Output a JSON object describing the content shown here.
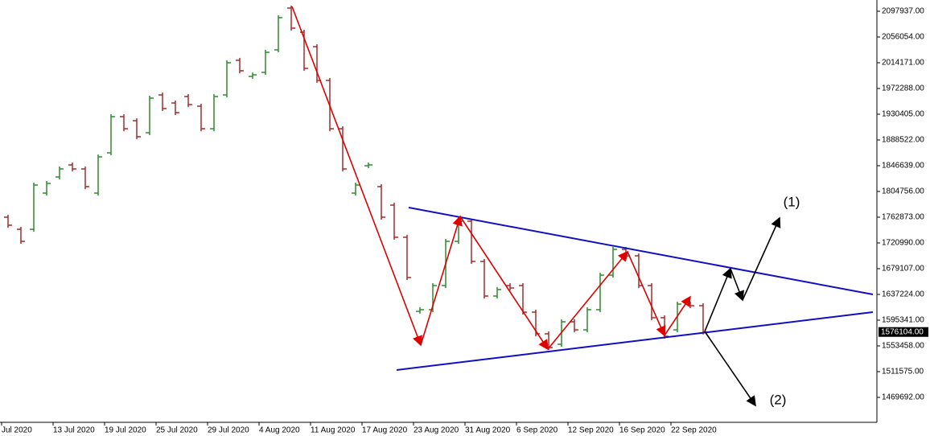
{
  "chart_data": {
    "type": "ohlc",
    "up_color": "#2e8b2e",
    "down_color": "#a52a2a",
    "categories": [
      "Jul 2020",
      null,
      null,
      null,
      "13 Jul 2020",
      null,
      null,
      null,
      "19 Jul 2020",
      null,
      null,
      null,
      "25 Jul 2020",
      null,
      null,
      null,
      "29 Jul 2020",
      null,
      null,
      null,
      "4 Aug 2020",
      null,
      null,
      null,
      "11 Aug 2020",
      null,
      null,
      null,
      "17 Aug 2020",
      null,
      null,
      null,
      "23 Aug 2020",
      null,
      null,
      null,
      "31 Aug 2020",
      null,
      null,
      null,
      "6 Sep 2020",
      null,
      null,
      null,
      "12 Sep 2020",
      null,
      null,
      null,
      "16 Sep 2020",
      null,
      null,
      null,
      "22 Sep 2020",
      null,
      null
    ],
    "open": [
      1762900,
      1743200,
      1743200,
      1802100,
      1828300,
      1847900,
      1841400,
      1802100,
      1867600,
      1926500,
      1919900,
      1900300,
      1961800,
      1948700,
      1959200,
      1943500,
      1906800,
      1961800,
      2018100,
      1991900,
      1998500,
      2035100,
      2103200,
      2063900,
      2040300,
      1985400,
      1906800,
      1802100,
      1846600,
      1812600,
      1782500,
      1730200,
      1609700,
      1612400,
      1651600,
      1723600,
      1756300,
      1690900,
      1634600,
      1651600,
      1651600,
      1608400,
      1573100,
      1556100,
      1592700,
      1579600,
      1612400,
      1668600,
      1710500,
      1700000,
      1651600,
      1599300,
      1579600,
      1621500,
      1618900
    ],
    "high": [
      1766900,
      1747200,
      1819200,
      1821800,
      1845400,
      1851900,
      1845400,
      1865000,
      1930500,
      1930500,
      1923900,
      1960600,
      1965800,
      1952700,
      1963200,
      1947500,
      1963200,
      2018200,
      2022100,
      1998500,
      2035200,
      2091500,
      2107200,
      2067900,
      2044300,
      1989400,
      1910800,
      1819200,
      1851900,
      1816600,
      1786500,
      1734200,
      1616400,
      1655600,
      1727600,
      1760300,
      1760300,
      1694900,
      1649100,
      1655600,
      1655600,
      1612400,
      1577100,
      1596700,
      1596700,
      1616400,
      1672600,
      1714500,
      1714500,
      1704000,
      1655600,
      1603300,
      1625500,
      1625500,
      1622900
    ],
    "low": [
      1745800,
      1719600,
      1739200,
      1798100,
      1824300,
      1837400,
      1808600,
      1798100,
      1863600,
      1902800,
      1889800,
      1896300,
      1935600,
      1929000,
      1942100,
      1902800,
      1902800,
      1957800,
      1997100,
      1987900,
      1994500,
      2031100,
      2066500,
      2001000,
      1981400,
      1902800,
      1837400,
      1798100,
      1842600,
      1758900,
      1726200,
      1660700,
      1605700,
      1608400,
      1647600,
      1719600,
      1686900,
      1630600,
      1630600,
      1643700,
      1604400,
      1569100,
      1546800,
      1552100,
      1575600,
      1575600,
      1608400,
      1664600,
      1696000,
      1647600,
      1595300,
      1565200,
      1575600,
      1614900,
      1572100
    ],
    "close": [
      1749800,
      1723600,
      1815200,
      1817800,
      1841400,
      1841400,
      1812600,
      1861000,
      1926500,
      1906800,
      1893800,
      1956600,
      1939600,
      1933000,
      1946100,
      1906800,
      1959200,
      2014200,
      2001100,
      1994500,
      2031200,
      2087500,
      2070500,
      2005000,
      1985400,
      1906800,
      1841400,
      1815200,
      1847900,
      1762900,
      1730200,
      1664700,
      1612400,
      1651600,
      1723600,
      1756300,
      1690900,
      1634600,
      1645100,
      1647700,
      1608400,
      1573100,
      1550800,
      1592700,
      1579600,
      1612400,
      1668600,
      1710500,
      1700000,
      1651600,
      1599300,
      1569200,
      1621500,
      1618900,
      1576104
    ],
    "ylim": [
      1429119,
      2116261
    ],
    "yticks": [
      {
        "value": 2097937,
        "label": "2097937.00"
      },
      {
        "value": 2056054,
        "label": "2056054.00"
      },
      {
        "value": 2014171,
        "label": "2014171.00"
      },
      {
        "value": 1972288,
        "label": "1972288.00"
      },
      {
        "value": 1930405,
        "label": "1930405.00"
      },
      {
        "value": 1888522,
        "label": "1888522.00"
      },
      {
        "value": 1846639,
        "label": "1846639.00"
      },
      {
        "value": 1804756,
        "label": "1804756.00"
      },
      {
        "value": 1762873,
        "label": "1762873.00"
      },
      {
        "value": 1720990,
        "label": "1720990.00"
      },
      {
        "value": 1679107,
        "label": "1679107.00"
      },
      {
        "value": 1637224,
        "label": "1637224.00"
      },
      {
        "value": 1595341,
        "label": "1595341.00"
      },
      {
        "value": 1553458,
        "label": "1553458.00"
      },
      {
        "value": 1511575,
        "label": "1511575.00"
      },
      {
        "value": 1469692,
        "label": "1469692.00"
      }
    ],
    "current_price": {
      "value": 1576104,
      "label": "1576104.00"
    },
    "annotations": [
      "(1)",
      "(2)"
    ]
  }
}
